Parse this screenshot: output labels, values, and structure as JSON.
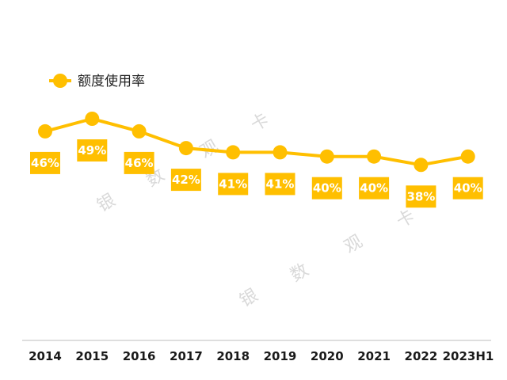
{
  "watermark": [
    "银",
    "数",
    "观",
    "卡"
  ],
  "colors": {
    "series": "#FFBF00",
    "label_text": "#FFFFFF",
    "axis": "#BDBDBD",
    "tick_text": "#1A1A1A"
  },
  "chart_data": {
    "type": "line",
    "categories": [
      "2014",
      "2015",
      "2016",
      "2017",
      "2018",
      "2019",
      "2020",
      "2021",
      "2022",
      "2023H1"
    ],
    "series": [
      {
        "name": "额度使用率",
        "values": [
          46,
          49,
          46,
          42,
          41,
          41,
          40,
          40,
          38,
          40
        ],
        "labels": [
          "46%",
          "49%",
          "46%",
          "42%",
          "41%",
          "41%",
          "40%",
          "40%",
          "38%",
          "40%"
        ]
      }
    ],
    "title": "",
    "xlabel": "",
    "ylabel": "",
    "legend": "top-left",
    "grid": false
  }
}
